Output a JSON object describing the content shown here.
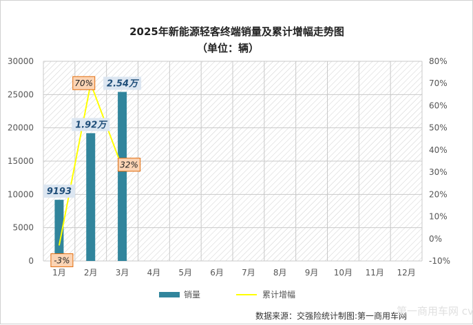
{
  "chart_data": {
    "type": "bar+line",
    "title": "2025年新能源轻客终端销量及累计增幅走势图",
    "subtitle": "（单位：辆）",
    "categories": [
      "1月",
      "2月",
      "3月",
      "4月",
      "5月",
      "6月",
      "7月",
      "8月",
      "9月",
      "10月",
      "11月",
      "12月"
    ],
    "series": [
      {
        "name": "销量",
        "type": "bar",
        "axis": "left",
        "color": "#31859c",
        "values": [
          9193,
          19200,
          25400,
          null,
          null,
          null,
          null,
          null,
          null,
          null,
          null,
          null
        ],
        "labels": [
          "9193",
          "1.92万",
          "2.54万"
        ]
      },
      {
        "name": "累计增幅",
        "type": "line",
        "axis": "right",
        "color": "#ffff00",
        "values": [
          -3,
          70,
          32,
          null,
          null,
          null,
          null,
          null,
          null,
          null,
          null,
          null
        ],
        "labels": [
          "-3%",
          "70%",
          "32%"
        ]
      }
    ],
    "y_left": {
      "min": 0,
      "max": 30000,
      "ticks": [
        "0",
        "5000",
        "10000",
        "15000",
        "20000",
        "25000",
        "30000"
      ]
    },
    "y_right": {
      "min": -10,
      "max": 80,
      "ticks": [
        "-10%",
        "0%",
        "10%",
        "20%",
        "30%",
        "40%",
        "50%",
        "60%",
        "70%",
        "80%"
      ]
    },
    "grid": true,
    "legend_position": "bottom"
  },
  "source_text": "数据来源：交强险统计制图:第一商用车网",
  "watermark_text": "第一商用车网 cvworld.cn"
}
